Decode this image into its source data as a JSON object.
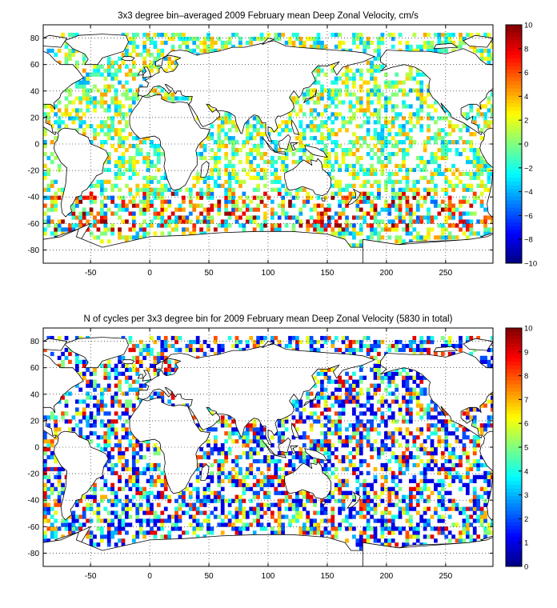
{
  "chart_data": [
    {
      "type": "heatmap",
      "title": "3x3 degree bin–averaged 2009 February mean Deep Zonal Velocity, cm/s",
      "xlabel": "",
      "ylabel": "",
      "xlim": [
        -90,
        290
      ],
      "ylim": [
        -90,
        90
      ],
      "xticks": [
        -50,
        0,
        50,
        100,
        150,
        200,
        250
      ],
      "yticks": [
        -80,
        -60,
        -40,
        -20,
        0,
        20,
        40,
        60,
        80
      ],
      "grid": true,
      "bin_size_deg": 3,
      "colorbar": {
        "min": -10,
        "max": 10,
        "ticks": [
          -10,
          -8,
          -6,
          -4,
          -2,
          0,
          2,
          4,
          6,
          8,
          10
        ],
        "colormap": "jet"
      },
      "map_background": "coastlines",
      "seed": 11
    },
    {
      "type": "heatmap",
      "title": "N of cycles per 3x3 degree bin for 2009 February mean Deep Zonal Velocity (5830 in total)",
      "xlabel": "",
      "ylabel": "",
      "xlim": [
        -90,
        290
      ],
      "ylim": [
        -90,
        90
      ],
      "xticks": [
        -50,
        0,
        50,
        100,
        150,
        200,
        250
      ],
      "yticks": [
        -80,
        -60,
        -40,
        -20,
        0,
        20,
        40,
        60,
        80
      ],
      "grid": true,
      "bin_size_deg": 3,
      "colorbar": {
        "min": 0,
        "max": 10,
        "ticks": [
          0,
          1,
          2,
          3,
          4,
          5,
          6,
          7,
          8,
          9,
          10
        ],
        "colormap": "jet"
      },
      "map_background": "coastlines",
      "seed": 37
    }
  ],
  "colors": {
    "background": "#ffffff",
    "axes": "#000000",
    "grid": "#000000",
    "land": "#ffffff"
  }
}
